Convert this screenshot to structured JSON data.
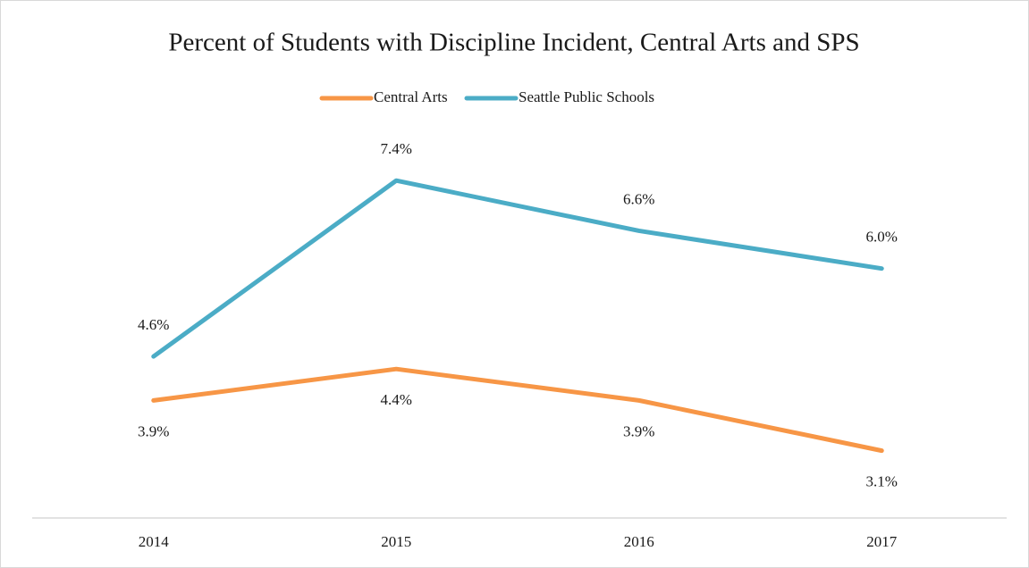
{
  "chart_data": {
    "type": "line",
    "title": "Percent of Students with Discipline Incident, Central Arts and SPS",
    "categories": [
      "2014",
      "2015",
      "2016",
      "2017"
    ],
    "series": [
      {
        "name": "Central Arts",
        "color": "#f79646",
        "values": [
          3.9,
          4.4,
          3.9,
          3.1
        ],
        "value_labels": [
          "3.9%",
          "4.4%",
          "3.9%",
          "3.1%"
        ]
      },
      {
        "name": "Seattle Public Schools",
        "color": "#4bacc6",
        "values": [
          4.6,
          7.4,
          6.6,
          6.0
        ],
        "value_labels": [
          "4.6%",
          "7.4%",
          "6.6%",
          "6.0%"
        ]
      }
    ],
    "ylim": [
      2,
      8
    ],
    "legend": "top"
  }
}
